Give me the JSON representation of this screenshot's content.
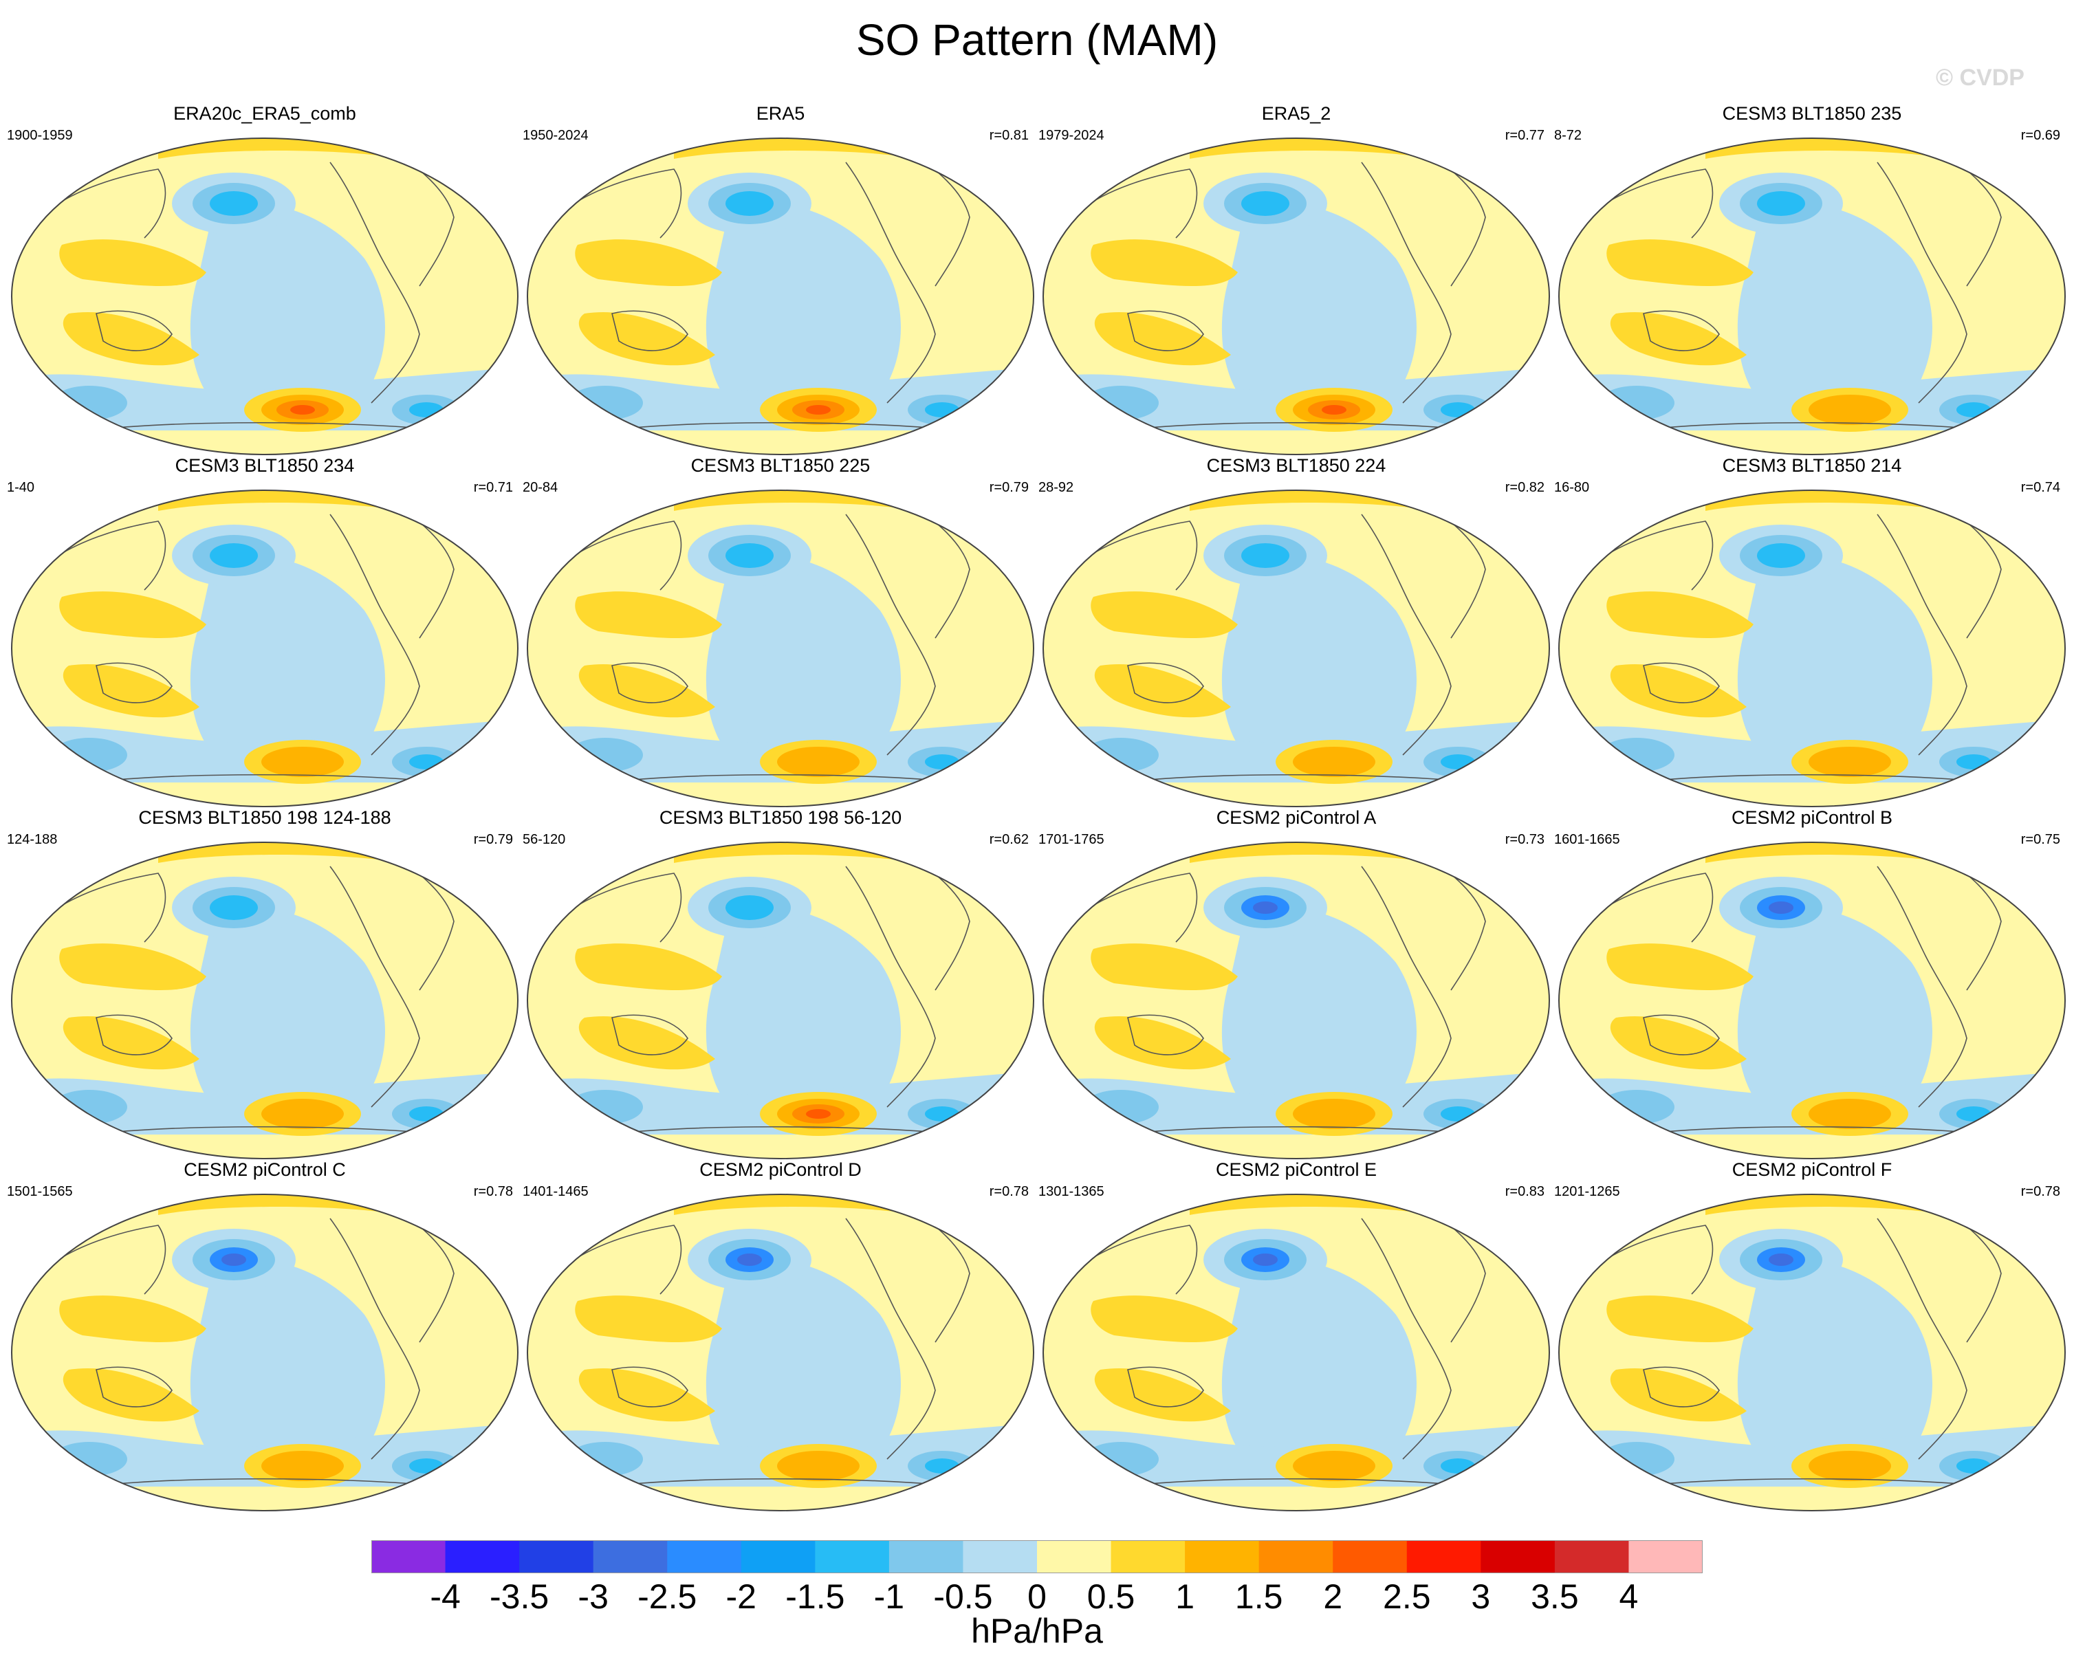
{
  "title": "SO Pattern (MAM)",
  "watermark": "© CVDP",
  "panels": [
    {
      "title": "ERA20c_ERA5_comb",
      "years": "1900-1959",
      "r": ""
    },
    {
      "title": "ERA5",
      "years": "1950-2024",
      "r": "r=0.81"
    },
    {
      "title": "ERA5_2",
      "years": "1979-2024",
      "r": "r=0.77"
    },
    {
      "title": "CESM3 BLT1850 235",
      "years": "8-72",
      "r": "r=0.69"
    },
    {
      "title": "CESM3 BLT1850 234",
      "years": "1-40",
      "r": "r=0.71"
    },
    {
      "title": "CESM3 BLT1850 225",
      "years": "20-84",
      "r": "r=0.79"
    },
    {
      "title": "CESM3 BLT1850 224",
      "years": "28-92",
      "r": "r=0.82"
    },
    {
      "title": "CESM3 BLT1850 214",
      "years": "16-80",
      "r": "r=0.74"
    },
    {
      "title": "CESM3 BLT1850 198 124-188",
      "years": "124-188",
      "r": "r=0.79"
    },
    {
      "title": "CESM3 BLT1850 198 56-120",
      "years": "56-120",
      "r": "r=0.62"
    },
    {
      "title": "CESM2 piControl A",
      "years": "1701-1765",
      "r": "r=0.73"
    },
    {
      "title": "CESM2 piControl B",
      "years": "1601-1665",
      "r": "r=0.75"
    },
    {
      "title": "CESM2 piControl C",
      "years": "1501-1565",
      "r": "r=0.78"
    },
    {
      "title": "CESM2 piControl D",
      "years": "1401-1465",
      "r": "r=0.78"
    },
    {
      "title": "CESM2 piControl E",
      "years": "1301-1365",
      "r": "r=0.83"
    },
    {
      "title": "CESM2 piControl F",
      "years": "1201-1265",
      "r": "r=0.78"
    }
  ],
  "colorbar": {
    "colors": [
      "#8a2be2",
      "#2a1fff",
      "#2140e6",
      "#3d6ee0",
      "#2a8cff",
      "#0fa0f5",
      "#27bcf5",
      "#7fc8ec",
      "#b5ddf2",
      "#fff8a8",
      "#ffd92e",
      "#ffb300",
      "#ff8c00",
      "#ff5a00",
      "#ff1a00",
      "#d90000",
      "#d42a2a",
      "#ffb8b8"
    ],
    "ticks": [
      "-4",
      "-3.5",
      "-3",
      "-2.5",
      "-2",
      "-1.5",
      "-1",
      "-0.5",
      "0",
      "0.5",
      "1",
      "1.5",
      "2",
      "2.5",
      "3",
      "3.5",
      "4"
    ],
    "units": "hPa/hPa"
  }
}
